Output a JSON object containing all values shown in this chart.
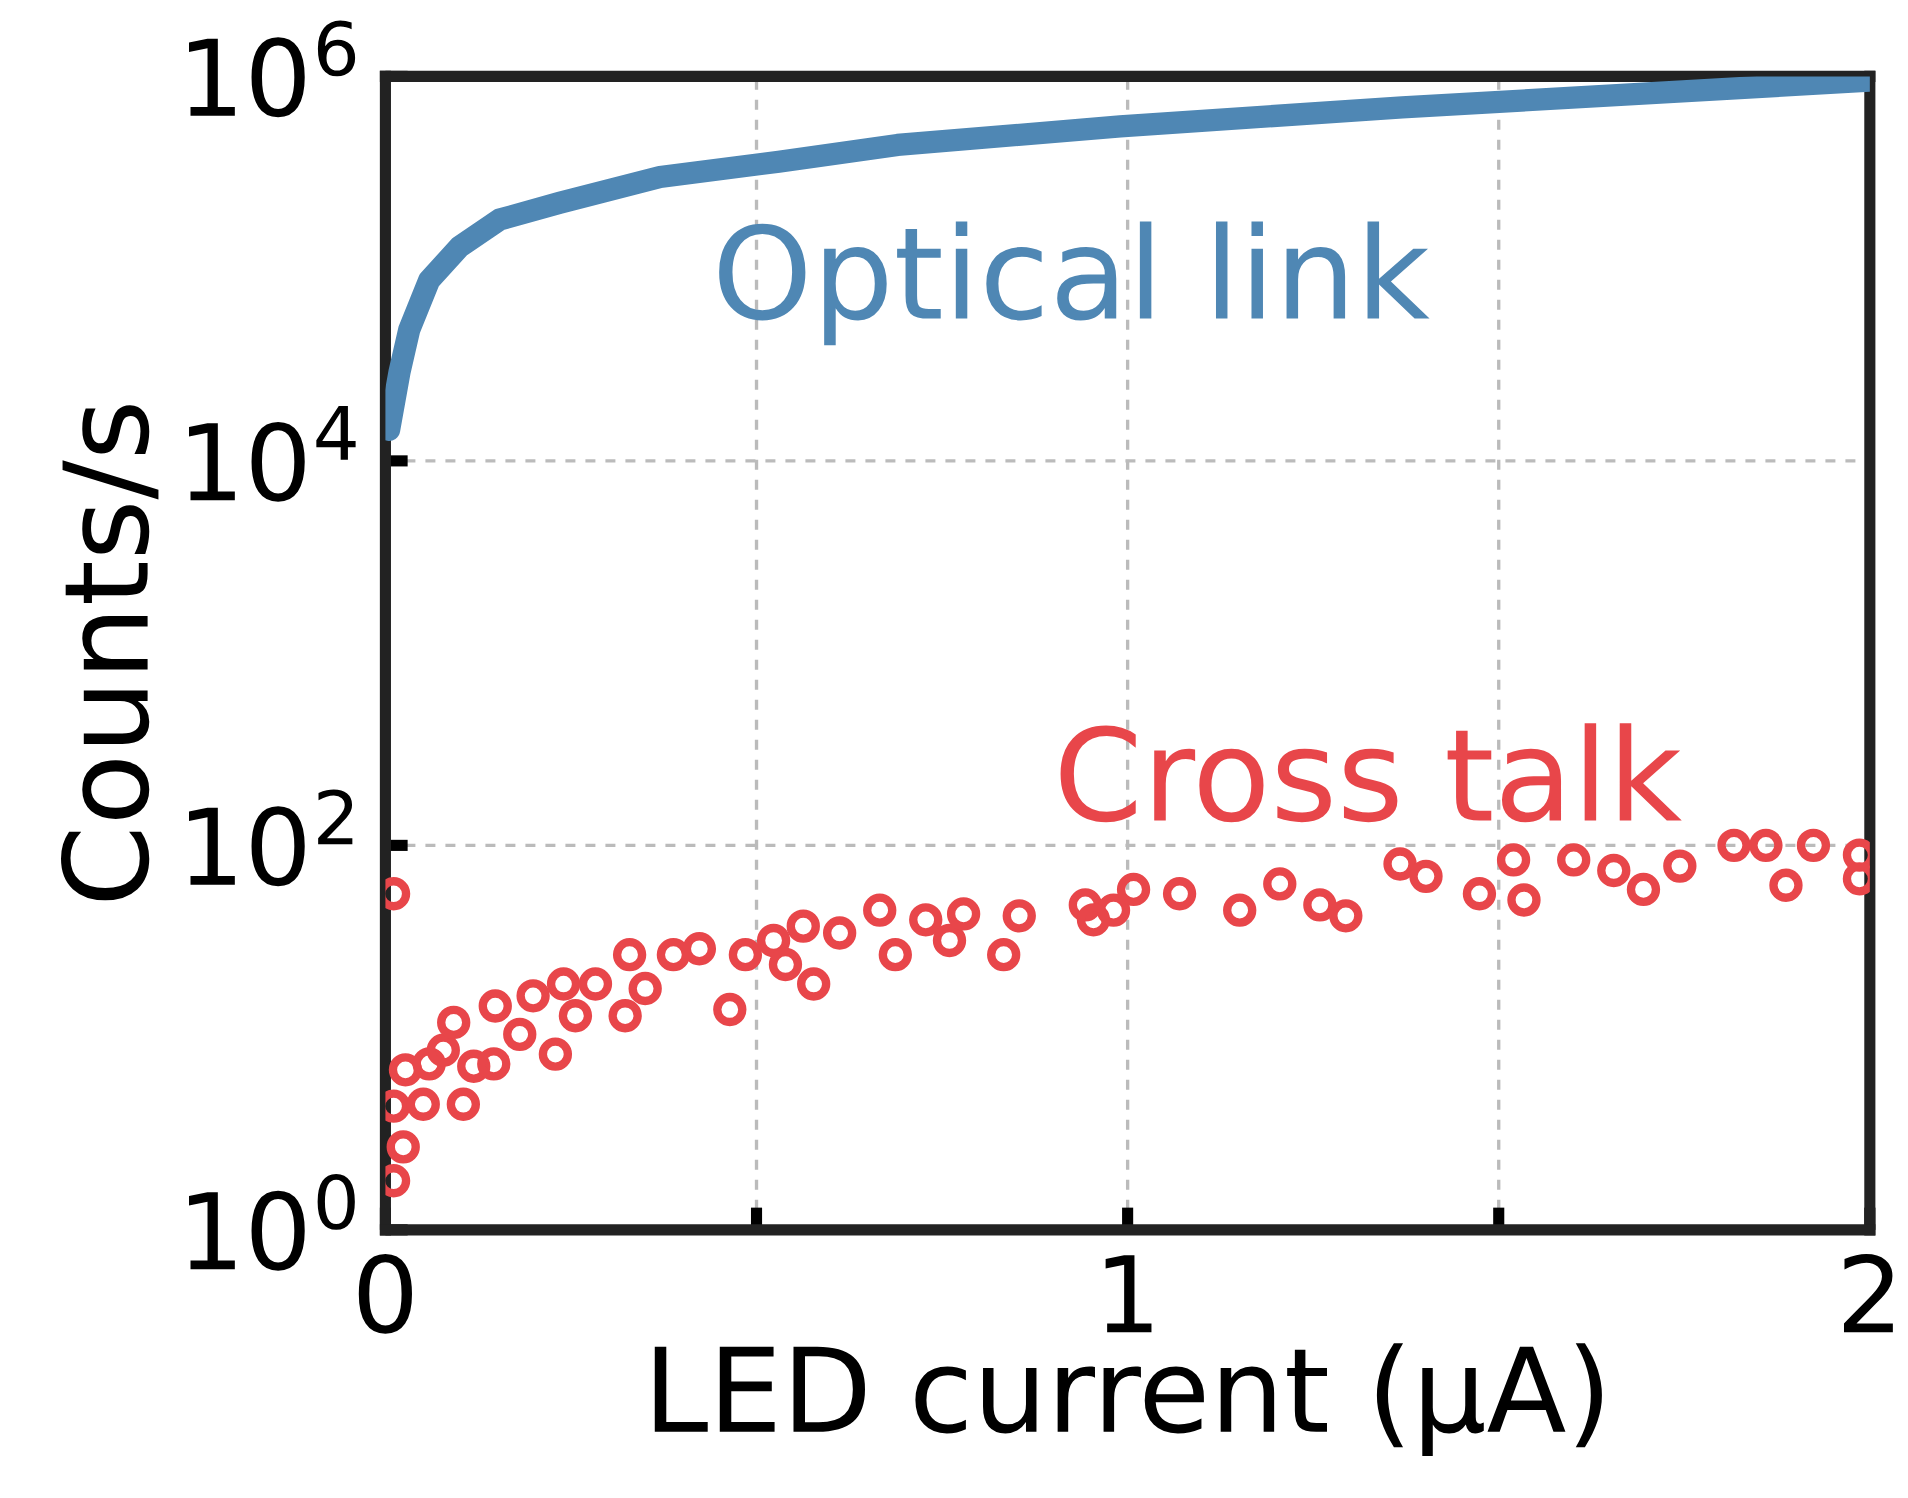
{
  "chart_data": {
    "type": "scatter",
    "xlabel": "LED current (μA)",
    "ylabel": "Counts/s",
    "log": "y",
    "xlim": [
      0,
      2
    ],
    "xticks": [
      0,
      {
        "value": 0.5,
        "label": null
      },
      1,
      {
        "value": 1.5,
        "label": null
      },
      2
    ],
    "ylim": [
      1,
      1000000
    ],
    "yticks": [
      {
        "value": 1,
        "label": "10$^{0}$"
      },
      {
        "value": 100,
        "label": "10$^{2}$"
      },
      {
        "value": 10000,
        "label": "10$^{4}$"
      },
      {
        "value": 1000000,
        "label": "10$^{6}$"
      }
    ],
    "grid": true,
    "legend": false,
    "series": [
      {
        "name": "Optical link",
        "type": "line",
        "color": "#4f87b4",
        "marker": "none",
        "line_style": "solid",
        "x": [
          0.005,
          0.019,
          0.032,
          0.059,
          0.1,
          0.154,
          0.235,
          0.37,
          0.53,
          0.69,
          0.99,
          1.37,
          2.0
        ],
        "values": [
          14500,
          29000,
          48000,
          87000,
          130000,
          180000,
          220000,
          300000,
          360000,
          440000,
          550000,
          690000,
          950000
        ]
      },
      {
        "name": "Cross talk",
        "color": "#e8464a",
        "marker": "circle",
        "x": [
          0.011,
          0.011,
          0.024,
          0.011,
          0.027,
          0.051,
          0.059,
          0.078,
          0.092,
          0.105,
          0.119,
          0.146,
          0.148,
          0.181,
          0.199,
          0.229,
          0.24,
          0.256,
          0.283,
          0.323,
          0.329,
          0.35,
          0.388,
          0.423,
          0.464,
          0.485,
          0.523,
          0.539,
          0.563,
          0.577,
          0.612,
          0.666,
          0.687,
          0.728,
          0.76,
          0.779,
          0.833,
          0.854,
          0.943,
          0.981,
          0.954,
          1.008,
          1.07,
          1.151,
          1.205,
          1.259,
          1.294,
          1.367,
          1.402,
          1.474,
          1.52,
          1.534,
          1.601,
          1.655,
          1.695,
          1.744,
          1.817,
          1.86,
          1.887,
          1.924,
          1.986,
          1.986
        ],
        "values": [
          56,
          4.4,
          2.7,
          1.8,
          6.8,
          4.5,
          7.3,
          8.6,
          12,
          4.5,
          7.1,
          7.3,
          14.6,
          10.4,
          16.5,
          8.2,
          19,
          13,
          19,
          13,
          27,
          18,
          27,
          29,
          14,
          27,
          32,
          24,
          38,
          19,
          35,
          46,
          27,
          41,
          32,
          44,
          27,
          43,
          49,
          46,
          41,
          59,
          56,
          46,
          63,
          49,
          43,
          80,
          69,
          56,
          84,
          52,
          84,
          74,
          59,
          78,
          100,
          100,
          62,
          100,
          89,
          67
        ]
      }
    ]
  }
}
